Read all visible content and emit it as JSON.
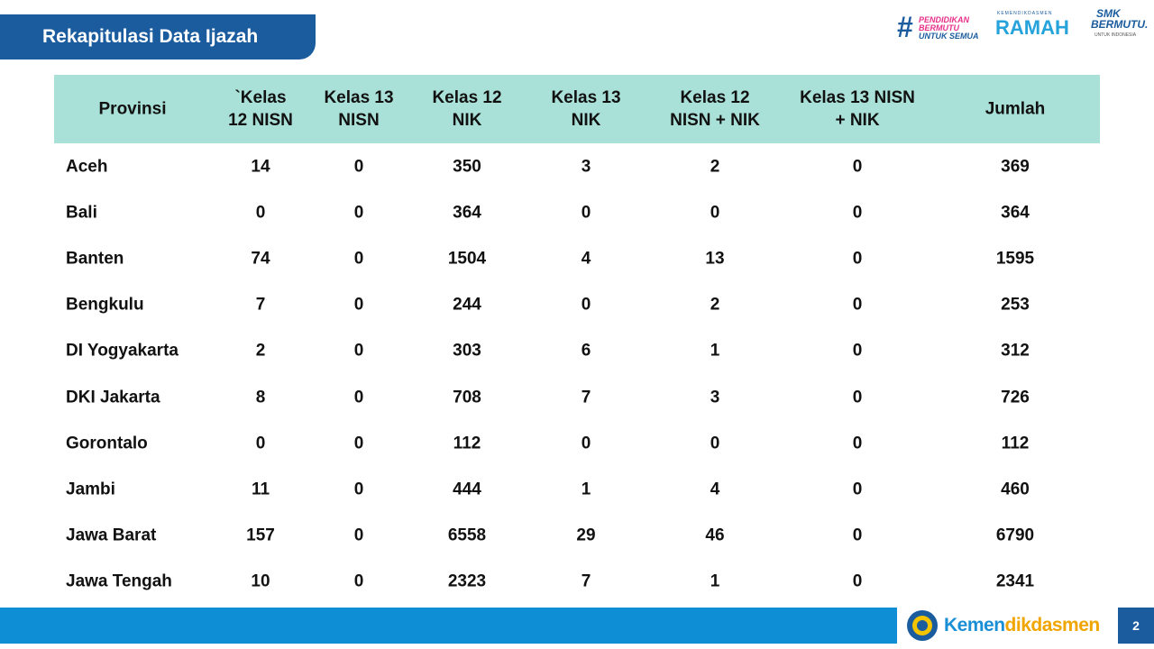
{
  "header": {
    "title": "Rekapitulasi Data Ijazah"
  },
  "logos": {
    "pendidikan": [
      "PENDIDIKAN",
      "BERMUTU",
      "UNTUK SEMUA"
    ],
    "ramah": [
      "KEMENDIKDASMEN",
      "RAMAH"
    ],
    "smk": [
      "SMK",
      "BERMUTU.",
      "UNTUK INDONESIA"
    ]
  },
  "table": {
    "columns": [
      "Provinsi",
      "`Kelas\n12 NISN",
      "Kelas 13\nNISN",
      "Kelas 12\nNIK",
      "Kelas 13\nNIK",
      "Kelas 12\nNISN + NIK",
      "Kelas 13 NISN\n+ NIK",
      "Jumlah"
    ],
    "rows": [
      [
        "Aceh",
        14,
        0,
        350,
        3,
        2,
        0,
        369
      ],
      [
        "Bali",
        0,
        0,
        364,
        0,
        0,
        0,
        364
      ],
      [
        "Banten",
        74,
        0,
        1504,
        4,
        13,
        0,
        1595
      ],
      [
        "Bengkulu",
        7,
        0,
        244,
        0,
        2,
        0,
        253
      ],
      [
        "DI Yogyakarta",
        2,
        0,
        303,
        6,
        1,
        0,
        312
      ],
      [
        "DKI Jakarta",
        8,
        0,
        708,
        7,
        3,
        0,
        726
      ],
      [
        "Gorontalo",
        0,
        0,
        112,
        0,
        0,
        0,
        112
      ],
      [
        "Jambi",
        11,
        0,
        444,
        1,
        4,
        0,
        460
      ],
      [
        "Jawa Barat",
        157,
        0,
        6558,
        29,
        46,
        0,
        6790
      ],
      [
        "Jawa Tengah",
        10,
        0,
        2323,
        7,
        1,
        0,
        2341
      ]
    ]
  },
  "footer": {
    "brand": [
      "Kemen",
      "dikdasmen"
    ],
    "page": "2"
  }
}
